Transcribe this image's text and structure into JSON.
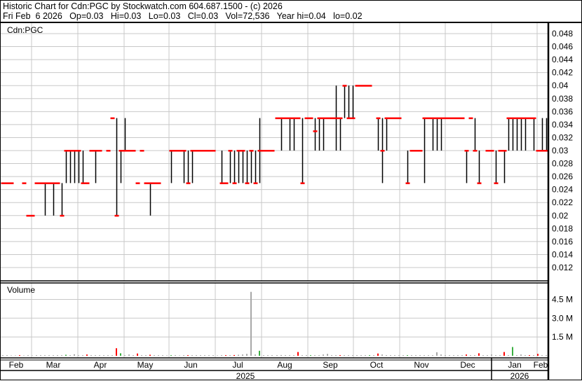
{
  "header": {
    "title": "Historic Chart for Cdn:PGC by Stockwatch.com 604.687.1500 - (c) 2026",
    "quote_line": "Fri Feb  6 2026   Op=0.03   Hi=0.03   Lo=0.03   Cl=0.03   Vol=72,536   Year hi=0.04   lo=0.02"
  },
  "chart_data": [
    {
      "type": "line",
      "style": "hi-lo with close ticks",
      "title": "Cdn:PGC",
      "x_range": [
        "2025-02-06",
        "2026-02-06"
      ],
      "ylim": [
        0.01,
        0.05
      ],
      "y_ticks": [
        "0.012",
        "0.014",
        "0.016",
        "0.018",
        "0.02",
        "0.022",
        "0.024",
        "0.026",
        "0.028",
        "0.03",
        "0.032",
        "0.034",
        "0.036",
        "0.038",
        "0.04",
        "0.042",
        "0.044",
        "0.046",
        "0.048"
      ],
      "grid": true,
      "colors": {
        "range_line": "#000000",
        "close_tick": "#ff0000",
        "grid": "#c8c8c8"
      },
      "bars_lo_hi_close": [
        [
          0.025,
          0.025,
          0.025
        ],
        [
          0.025,
          0.025,
          0.025
        ],
        [
          0.025,
          0.025,
          0.025
        ],
        null,
        null,
        [
          0.025,
          0.025,
          0.025
        ],
        [
          0.02,
          0.02,
          0.02
        ],
        [
          0.02,
          0.02,
          0.02
        ],
        [
          0.025,
          0.025,
          0.025
        ],
        [
          0.025,
          0.025,
          0.025
        ],
        [
          0.02,
          0.025,
          0.025
        ],
        [
          0.025,
          0.025,
          0.025
        ],
        [
          0.02,
          0.025,
          0.025
        ],
        [
          0.025,
          0.025,
          0.025
        ],
        [
          0.02,
          0.025,
          0.02
        ],
        [
          0.025,
          0.03,
          0.03
        ],
        [
          0.025,
          0.03,
          0.03
        ],
        [
          0.025,
          0.03,
          0.03
        ],
        [
          0.025,
          0.03,
          0.03
        ],
        [
          0.025,
          0.03,
          0.025
        ],
        [
          0.025,
          0.025,
          0.025
        ],
        [
          0.03,
          0.03,
          0.03
        ],
        [
          0.025,
          0.03,
          0.03
        ],
        [
          0.03,
          0.03,
          0.03
        ],
        null,
        [
          0.03,
          0.03,
          0.03
        ],
        [
          0.035,
          0.035,
          0.035
        ],
        [
          0.02,
          0.035,
          0.02
        ],
        [
          0.025,
          0.03,
          0.03
        ],
        [
          0.03,
          0.035,
          0.03
        ],
        [
          0.03,
          0.03,
          0.03
        ],
        [
          0.03,
          0.03,
          0.03
        ],
        [
          0.025,
          0.025,
          0.025
        ],
        [
          0.03,
          0.03,
          0.03
        ],
        [
          0.025,
          0.025,
          0.025
        ],
        [
          0.02,
          0.025,
          0.025
        ],
        [
          0.025,
          0.025,
          0.025
        ],
        [
          0.025,
          0.025,
          0.025
        ],
        null,
        null,
        [
          0.025,
          0.03,
          0.03
        ],
        [
          0.03,
          0.03,
          0.03
        ],
        [
          0.03,
          0.03,
          0.03
        ],
        [
          0.025,
          0.03,
          0.03
        ],
        [
          0.025,
          0.03,
          0.025
        ],
        [
          0.025,
          0.03,
          0.03
        ],
        [
          0.03,
          0.03,
          0.03
        ],
        [
          0.03,
          0.03,
          0.03
        ],
        [
          0.03,
          0.03,
          0.03
        ],
        [
          0.03,
          0.03,
          0.03
        ],
        [
          0.03,
          0.03,
          0.03
        ],
        null,
        [
          0.025,
          0.03,
          0.025
        ],
        [
          0.025,
          0.025,
          0.025
        ],
        [
          0.025,
          0.03,
          0.03
        ],
        [
          0.025,
          0.03,
          0.025
        ],
        [
          0.025,
          0.03,
          0.03
        ],
        [
          0.025,
          0.03,
          0.03
        ],
        [
          0.025,
          0.03,
          0.025
        ],
        [
          0.025,
          0.03,
          0.03
        ],
        [
          0.025,
          0.03,
          0.025
        ],
        [
          0.025,
          0.035,
          0.03
        ],
        [
          0.03,
          0.03,
          0.03
        ],
        [
          0.03,
          0.03,
          0.03
        ],
        [
          0.03,
          0.03,
          0.03
        ],
        [
          0.035,
          0.035,
          0.035
        ],
        [
          0.03,
          0.035,
          0.035
        ],
        [
          0.035,
          0.035,
          0.035
        ],
        [
          0.03,
          0.035,
          0.035
        ],
        [
          0.03,
          0.035,
          0.035
        ],
        [
          0.035,
          0.035,
          0.035
        ],
        [
          0.025,
          0.035,
          0.025
        ],
        [
          0.035,
          0.035,
          0.035
        ],
        [
          0.035,
          0.035,
          0.035
        ],
        [
          0.03,
          0.035,
          0.033
        ],
        [
          0.03,
          0.035,
          0.035
        ],
        [
          0.03,
          0.035,
          0.035
        ],
        [
          0.035,
          0.035,
          0.035
        ],
        [
          0.035,
          0.035,
          0.035
        ],
        [
          0.03,
          0.04,
          0.035
        ],
        [
          0.03,
          0.035,
          0.035
        ],
        [
          0.035,
          0.04,
          0.04
        ],
        [
          0.035,
          0.04,
          0.035
        ],
        [
          0.035,
          0.04,
          0.035
        ],
        [
          0.04,
          0.04,
          0.04
        ],
        [
          0.04,
          0.04,
          0.04
        ],
        [
          0.04,
          0.04,
          0.04
        ],
        [
          0.04,
          0.04,
          0.04
        ],
        null,
        [
          0.03,
          0.035,
          0.035
        ],
        [
          0.025,
          0.035,
          0.03
        ],
        [
          0.03,
          0.035,
          0.035
        ],
        [
          0.035,
          0.035,
          0.035
        ],
        [
          0.035,
          0.035,
          0.035
        ],
        [
          0.035,
          0.035,
          0.035
        ],
        null,
        [
          0.025,
          0.03,
          0.025
        ],
        [
          0.03,
          0.03,
          0.03
        ],
        [
          0.03,
          0.03,
          0.03
        ],
        [
          0.03,
          0.03,
          0.03
        ],
        [
          0.025,
          0.035,
          0.035
        ],
        [
          0.035,
          0.035,
          0.035
        ],
        [
          0.03,
          0.035,
          0.035
        ],
        [
          0.03,
          0.035,
          0.035
        ],
        [
          0.03,
          0.035,
          0.035
        ],
        [
          0.035,
          0.035,
          0.035
        ],
        [
          0.035,
          0.035,
          0.035
        ],
        [
          0.035,
          0.035,
          0.035
        ],
        [
          0.035,
          0.035,
          0.035
        ],
        [
          0.035,
          0.035,
          0.035
        ],
        [
          0.025,
          0.03,
          0.03
        ],
        [
          0.035,
          0.035,
          0.035
        ],
        [
          0.03,
          0.035,
          0.03
        ],
        [
          0.025,
          0.03,
          0.025
        ],
        null,
        [
          0.03,
          0.03,
          0.03
        ],
        [
          0.03,
          0.03,
          0.03
        ],
        [
          0.025,
          0.03,
          0.025
        ],
        [
          0.03,
          0.03,
          0.03
        ],
        [
          0.025,
          0.03,
          0.03
        ],
        [
          0.03,
          0.035,
          0.035
        ],
        [
          0.03,
          0.035,
          0.035
        ],
        [
          0.03,
          0.035,
          0.035
        ],
        [
          0.03,
          0.035,
          0.035
        ],
        [
          0.03,
          0.035,
          0.035
        ],
        [
          0.035,
          0.035,
          0.035
        ],
        [
          0.03,
          0.035,
          0.035
        ],
        [
          0.03,
          0.03,
          0.03
        ],
        [
          0.03,
          0.035,
          0.03
        ],
        [
          0.03,
          0.035,
          0.03
        ]
      ]
    },
    {
      "type": "bar",
      "title": "Volume",
      "ylim": [
        0,
        5.5
      ],
      "unit": "M",
      "y_ticks": [
        "1.5 M",
        "3.0 M",
        "4.5 M"
      ],
      "colors": {
        "up": "#3cb043",
        "down": "#ff0000",
        "flat": "#a8a8a8"
      },
      "values_m": [
        0.05,
        0.05,
        0.03,
        0.03,
        0.05,
        0.03,
        0.05,
        0.03,
        0.05,
        0.05,
        0.05,
        0.05,
        0.05,
        0.05,
        0.05,
        0.08,
        0.05,
        0.12,
        0.05,
        0.05,
        0.1,
        0.05,
        0.05,
        0.05,
        0.05,
        0.05,
        0.05,
        0.6,
        0.2,
        0.05,
        0.1,
        0.05,
        0.18,
        0.05,
        0.05,
        0.08,
        0.05,
        0.05,
        0.05,
        0.03,
        0.05,
        0.05,
        0.03,
        0.05,
        0.05,
        0.05,
        0.05,
        0.05,
        0.05,
        0.05,
        0.05,
        0.03,
        0.05,
        0.05,
        0.05,
        0.06,
        0.08,
        0.1,
        0.15,
        5.1,
        0.1,
        0.4,
        0.05,
        0.05,
        0.05,
        0.05,
        0.06,
        0.05,
        0.05,
        0.05,
        0.3,
        0.05,
        0.05,
        0.05,
        0.05,
        0.05,
        0.1,
        0.15,
        0.05,
        0.05,
        0.05,
        0.05,
        0.05,
        0.05,
        0.05,
        0.05,
        0.05,
        0.05,
        0.05,
        0.18,
        0.1,
        0.05,
        0.05,
        0.05,
        0.05,
        0.05,
        0.05,
        0.05,
        0.05,
        0.05,
        0.05,
        0.05,
        0.05,
        0.28,
        0.1,
        0.05,
        0.05,
        0.05,
        0.05,
        0.05,
        0.1,
        0.05,
        0.05,
        0.2,
        0.05,
        0.05,
        0.1,
        0.05,
        0.05,
        0.3,
        0.05,
        0.7,
        0.05,
        0.1,
        0.05,
        0.05,
        0.05,
        0.15,
        0.05,
        0.05
      ],
      "directions": [
        "flat",
        "flat",
        "flat",
        "flat",
        "down",
        "flat",
        "flat",
        "flat",
        "flat",
        "flat",
        "flat",
        "flat",
        "flat",
        "flat",
        "flat",
        "up",
        "flat",
        "flat",
        "flat",
        "flat",
        "down",
        "flat",
        "flat",
        "flat",
        "flat",
        "flat",
        "flat",
        "down",
        "up",
        "flat",
        "flat",
        "flat",
        "down",
        "flat",
        "flat",
        "down",
        "flat",
        "flat",
        "flat",
        "flat",
        "up",
        "flat",
        "flat",
        "flat",
        "down",
        "flat",
        "flat",
        "flat",
        "flat",
        "flat",
        "flat",
        "flat",
        "flat",
        "down",
        "flat",
        "down",
        "flat",
        "flat",
        "flat",
        "flat",
        "flat",
        "up",
        "flat",
        "flat",
        "flat",
        "flat",
        "flat",
        "flat",
        "flat",
        "flat",
        "down",
        "flat",
        "flat",
        "up",
        "flat",
        "flat",
        "flat",
        "flat",
        "flat",
        "flat",
        "down",
        "flat",
        "flat",
        "flat",
        "flat",
        "flat",
        "flat",
        "up",
        "flat",
        "down",
        "flat",
        "flat",
        "flat",
        "flat",
        "flat",
        "flat",
        "up",
        "flat",
        "flat",
        "flat",
        "flat",
        "flat",
        "flat",
        "flat",
        "flat",
        "flat",
        "flat",
        "flat",
        "flat",
        "flat",
        "down",
        "flat",
        "flat",
        "down",
        "flat",
        "flat",
        "flat",
        "flat",
        "flat",
        "down",
        "flat",
        "up",
        "flat",
        "flat",
        "flat",
        "down",
        "flat",
        "down",
        "flat",
        "flat"
      ]
    }
  ],
  "x_axis": {
    "months": [
      "Feb",
      "Mar",
      "Apr",
      "May",
      "Jun",
      "Jul",
      "Aug",
      "Sep",
      "Oct",
      "Nov",
      "Dec",
      "Jan",
      "Feb"
    ],
    "years": [
      "2025",
      "2026"
    ]
  }
}
